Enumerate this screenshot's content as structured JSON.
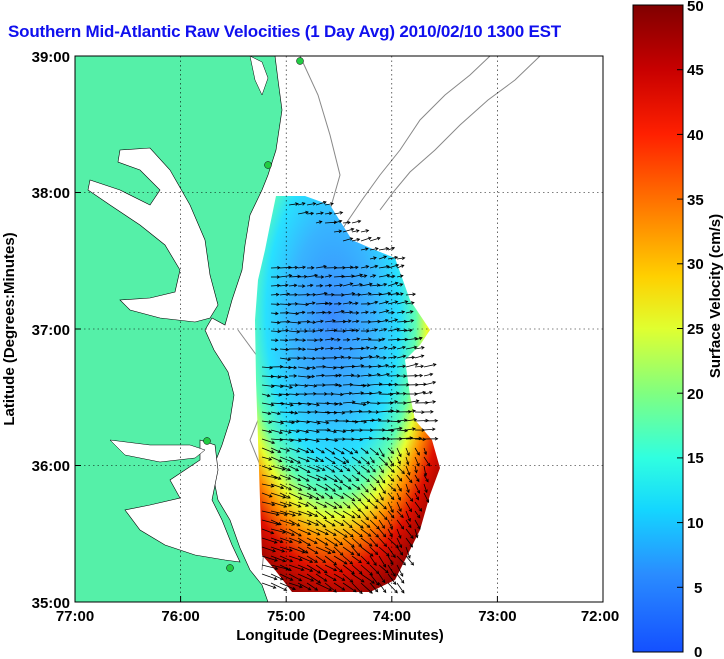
{
  "title": "Southern Mid-Atlantic Raw Velocities (1 Day Avg) 2010/02/10 1300 EST",
  "x_axis": {
    "label": "Longitude (Degrees:Minutes)",
    "ticks": [
      "77:00",
      "76:00",
      "75:00",
      "74:00",
      "73:00",
      "72:00"
    ]
  },
  "y_axis": {
    "label": "Latitude (Degrees:Minutes)",
    "ticks": [
      "39:00",
      "38:00",
      "37:00",
      "36:00",
      "35:00"
    ]
  },
  "colorbar": {
    "label": "Surface Velocity (cm/s)",
    "ticks": [
      "50",
      "45",
      "40",
      "35",
      "30",
      "25",
      "20",
      "15",
      "10",
      "5",
      "0"
    ],
    "min": 0,
    "max": 50
  },
  "colors": {
    "land": "#55f0a8",
    "title": "#1010ee",
    "hf_radar_site": "#22cc44"
  }
}
